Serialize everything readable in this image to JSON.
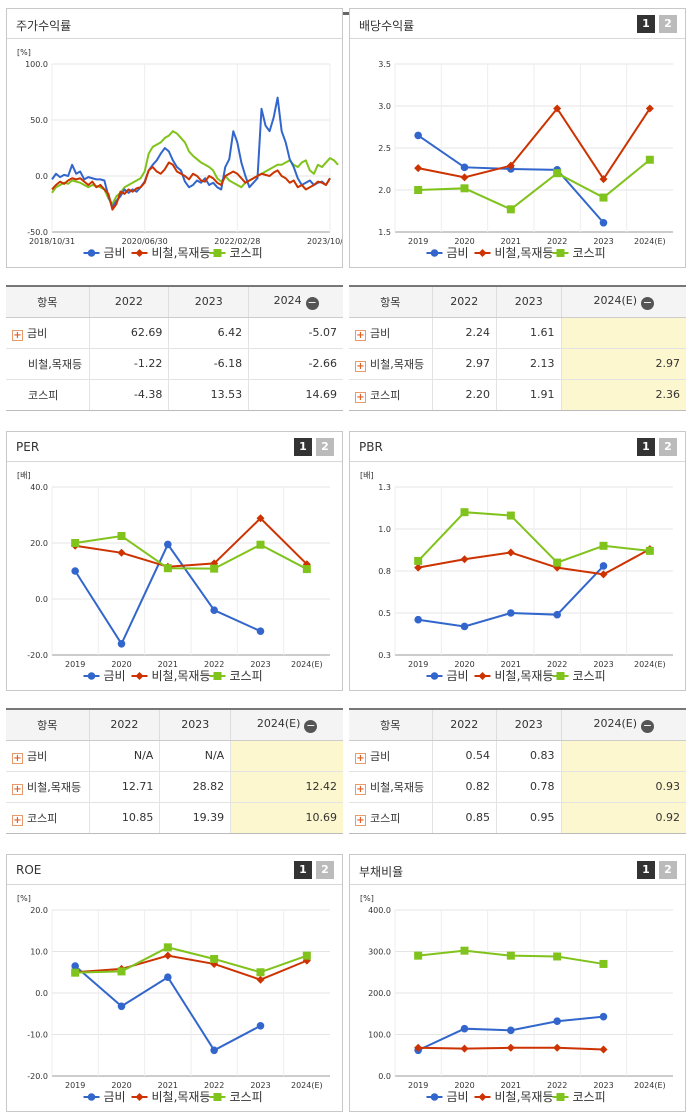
{
  "colors": {
    "geumbi": "#3366cc",
    "sector": "#cc3300",
    "kospi": "#80c31c"
  },
  "legend": [
    "금비",
    "비철,목재등",
    "코스피"
  ],
  "stock_return": {
    "title": "주가수익률",
    "table": {
      "headers": [
        "항목",
        "2022",
        "2023",
        "2024"
      ],
      "rows": [
        {
          "name": "금비",
          "plus": true,
          "values": [
            "62.69",
            "6.42",
            "-5.07"
          ]
        },
        {
          "name": "비철,목재등",
          "plus": false,
          "values": [
            "-1.22",
            "-6.18",
            "-2.66"
          ]
        },
        {
          "name": "코스피",
          "plus": false,
          "values": [
            "-4.38",
            "13.53",
            "14.69"
          ]
        }
      ]
    }
  },
  "dividend": {
    "title": "배당수익률",
    "pages": [
      "1",
      "2"
    ],
    "table": {
      "headers": [
        "항목",
        "2022",
        "2023",
        "2024(E)"
      ],
      "rows": [
        {
          "name": "금비",
          "plus": true,
          "values": [
            "2.24",
            "1.61",
            ""
          ]
        },
        {
          "name": "비철,목재등",
          "plus": true,
          "values": [
            "2.97",
            "2.13",
            "2.97"
          ]
        },
        {
          "name": "코스피",
          "plus": true,
          "values": [
            "2.20",
            "1.91",
            "2.36"
          ]
        }
      ]
    }
  },
  "per": {
    "title": "PER",
    "pages": [
      "1",
      "2"
    ],
    "table": {
      "headers": [
        "항목",
        "2022",
        "2023",
        "2024(E)"
      ],
      "rows": [
        {
          "name": "금비",
          "plus": true,
          "values": [
            "N/A",
            "N/A",
            ""
          ]
        },
        {
          "name": "비철,목재등",
          "plus": true,
          "values": [
            "12.71",
            "28.82",
            "12.42"
          ]
        },
        {
          "name": "코스피",
          "plus": true,
          "values": [
            "10.85",
            "19.39",
            "10.69"
          ]
        }
      ]
    }
  },
  "pbr": {
    "title": "PBR",
    "pages": [
      "1",
      "2"
    ],
    "table": {
      "headers": [
        "항목",
        "2022",
        "2023",
        "2024(E)"
      ],
      "rows": [
        {
          "name": "금비",
          "plus": true,
          "values": [
            "0.54",
            "0.83",
            ""
          ]
        },
        {
          "name": "비철,목재등",
          "plus": true,
          "values": [
            "0.82",
            "0.78",
            "0.93"
          ]
        },
        {
          "name": "코스피",
          "plus": true,
          "values": [
            "0.85",
            "0.95",
            "0.92"
          ]
        }
      ]
    }
  },
  "roe": {
    "title": "ROE",
    "pages": [
      "1",
      "2"
    ]
  },
  "debt": {
    "title": "부채비율",
    "pages": [
      "1",
      "2"
    ]
  },
  "chart_data": [
    {
      "id": "stock_return",
      "type": "line",
      "unit": "[%]",
      "ylim": [
        -50,
        100
      ],
      "yticks": [
        "100.0",
        "50.0",
        "0.0",
        "-50.0"
      ],
      "xlabels": [
        "2018/10/31",
        "2020/06/30",
        "2022/02/28",
        "2023/10/31"
      ],
      "series": [
        {
          "name": "금비",
          "values": [
            -3,
            2,
            -1,
            1,
            0,
            10,
            2,
            4,
            -3,
            -1,
            -2,
            -3,
            -3,
            -4,
            -18,
            -28,
            -22,
            -18,
            -12,
            -15,
            -12,
            -14,
            -10,
            -5,
            5,
            10,
            14,
            20,
            25,
            22,
            14,
            8,
            5,
            -5,
            -10,
            -8,
            -4,
            -6,
            -2,
            -8,
            -6,
            -10,
            -12,
            8,
            15,
            40,
            30,
            12,
            0,
            -10,
            -6,
            -2,
            60,
            45,
            40,
            52,
            70,
            40,
            30,
            15,
            8,
            -2,
            -8,
            -6,
            -4,
            -8,
            -6,
            -5,
            -8,
            -2
          ]
        },
        {
          "name": "비철,목재등",
          "values": [
            -12,
            -8,
            -5,
            -7,
            -4,
            -2,
            -3,
            -2,
            -5,
            -8,
            -5,
            -10,
            -8,
            -12,
            -16,
            -30,
            -25,
            -14,
            -16,
            -12,
            -14,
            -11,
            -10,
            -6,
            5,
            8,
            4,
            2,
            6,
            12,
            10,
            4,
            2,
            0,
            -3,
            2,
            0,
            -4,
            -5,
            0,
            -2,
            -6,
            -8,
            0,
            2,
            4,
            2,
            -2,
            -6,
            -4,
            -2,
            0,
            2,
            1,
            0,
            3,
            5,
            0,
            -2,
            -6,
            -4,
            -10,
            -8,
            -12,
            -10,
            -8,
            -5,
            -6,
            -8,
            -2
          ]
        },
        {
          "name": "코스피",
          "values": [
            -15,
            -10,
            -8,
            -6,
            -7,
            -4,
            -5,
            -6,
            -8,
            -10,
            -8,
            -9,
            -10,
            -12,
            -20,
            -25,
            -18,
            -15,
            -10,
            -8,
            -6,
            -4,
            -2,
            4,
            20,
            26,
            28,
            30,
            34,
            36,
            40,
            38,
            34,
            30,
            22,
            18,
            15,
            12,
            10,
            8,
            5,
            -2,
            -5,
            0,
            -4,
            -6,
            -8,
            -10,
            -6,
            -4,
            -2,
            0,
            2,
            4,
            6,
            8,
            10,
            10,
            12,
            14,
            10,
            8,
            12,
            14,
            5,
            2,
            10,
            8,
            12,
            16,
            14,
            10
          ]
        }
      ]
    },
    {
      "id": "dividend",
      "type": "line",
      "ylim": [
        1.5,
        3.5
      ],
      "yticks": [
        "3.5",
        "3.0",
        "2.5",
        "2.0",
        "1.5"
      ],
      "categories": [
        "2019",
        "2020",
        "2021",
        "2022",
        "2023",
        "2024(E)"
      ],
      "series": [
        {
          "name": "금비",
          "values": [
            2.65,
            2.27,
            2.25,
            2.24,
            1.61,
            null
          ]
        },
        {
          "name": "비철,목재등",
          "values": [
            2.26,
            2.15,
            2.29,
            2.97,
            2.13,
            2.97
          ]
        },
        {
          "name": "코스피",
          "values": [
            2.0,
            2.02,
            1.77,
            2.2,
            1.91,
            2.36
          ]
        }
      ]
    },
    {
      "id": "per",
      "type": "line",
      "unit": "[배]",
      "ylim": [
        -20,
        40
      ],
      "yticks": [
        "40.0",
        "20.0",
        "0.0",
        "-20.0"
      ],
      "categories": [
        "2019",
        "2020",
        "2021",
        "2022",
        "2023",
        "2024(E)"
      ],
      "series": [
        {
          "name": "금비",
          "values": [
            10.0,
            -16.0,
            19.5,
            -4.0,
            -11.5,
            null
          ]
        },
        {
          "name": "비철,목재등",
          "values": [
            19.0,
            16.5,
            11.5,
            12.71,
            28.82,
            12.42
          ]
        },
        {
          "name": "코스피",
          "values": [
            20.0,
            22.5,
            11.0,
            10.85,
            19.39,
            10.69
          ]
        }
      ]
    },
    {
      "id": "pbr",
      "type": "line",
      "unit": "[배]",
      "ylim": [
        0.3,
        1.3
      ],
      "yticks": [
        "1.3",
        "1.0",
        "0.8",
        "0.5",
        "0.3"
      ],
      "categories": [
        "2019",
        "2020",
        "2021",
        "2022",
        "2023",
        "2024(E)"
      ],
      "series": [
        {
          "name": "금비",
          "values": [
            0.51,
            0.47,
            0.55,
            0.54,
            0.83,
            null
          ]
        },
        {
          "name": "비철,목재등",
          "values": [
            0.82,
            0.87,
            0.91,
            0.82,
            0.78,
            0.93
          ]
        },
        {
          "name": "코스피",
          "values": [
            0.86,
            1.15,
            1.13,
            0.85,
            0.95,
            0.92
          ]
        }
      ]
    },
    {
      "id": "roe",
      "type": "line",
      "unit": "[%]",
      "ylim": [
        -20,
        20
      ],
      "yticks": [
        "20.0",
        "10.0",
        "0.0",
        "-10.0",
        "-20.0"
      ],
      "categories": [
        "2019",
        "2020",
        "2021",
        "2022",
        "2023",
        "2024(E)"
      ],
      "series": [
        {
          "name": "금비",
          "values": [
            6.5,
            -3.2,
            3.8,
            -13.8,
            -7.9,
            null
          ]
        },
        {
          "name": "비철,목재등",
          "values": [
            5.0,
            5.8,
            9.0,
            7.0,
            3.2,
            7.8
          ]
        },
        {
          "name": "코스피",
          "values": [
            4.9,
            5.2,
            11.0,
            8.2,
            5.0,
            9.0
          ]
        }
      ]
    },
    {
      "id": "debt",
      "type": "line",
      "unit": "[%]",
      "ylim": [
        0,
        400
      ],
      "yticks": [
        "400.0",
        "300.0",
        "200.0",
        "100.0",
        "0.0"
      ],
      "categories": [
        "2019",
        "2020",
        "2021",
        "2022",
        "2023",
        "2024(E)"
      ],
      "series": [
        {
          "name": "금비",
          "values": [
            62,
            114,
            110,
            132,
            143,
            null
          ]
        },
        {
          "name": "비철,목재등",
          "values": [
            68,
            66,
            68,
            68,
            64,
            null
          ]
        },
        {
          "name": "코스피",
          "values": [
            290,
            302,
            290,
            288,
            270,
            null
          ]
        }
      ]
    }
  ]
}
